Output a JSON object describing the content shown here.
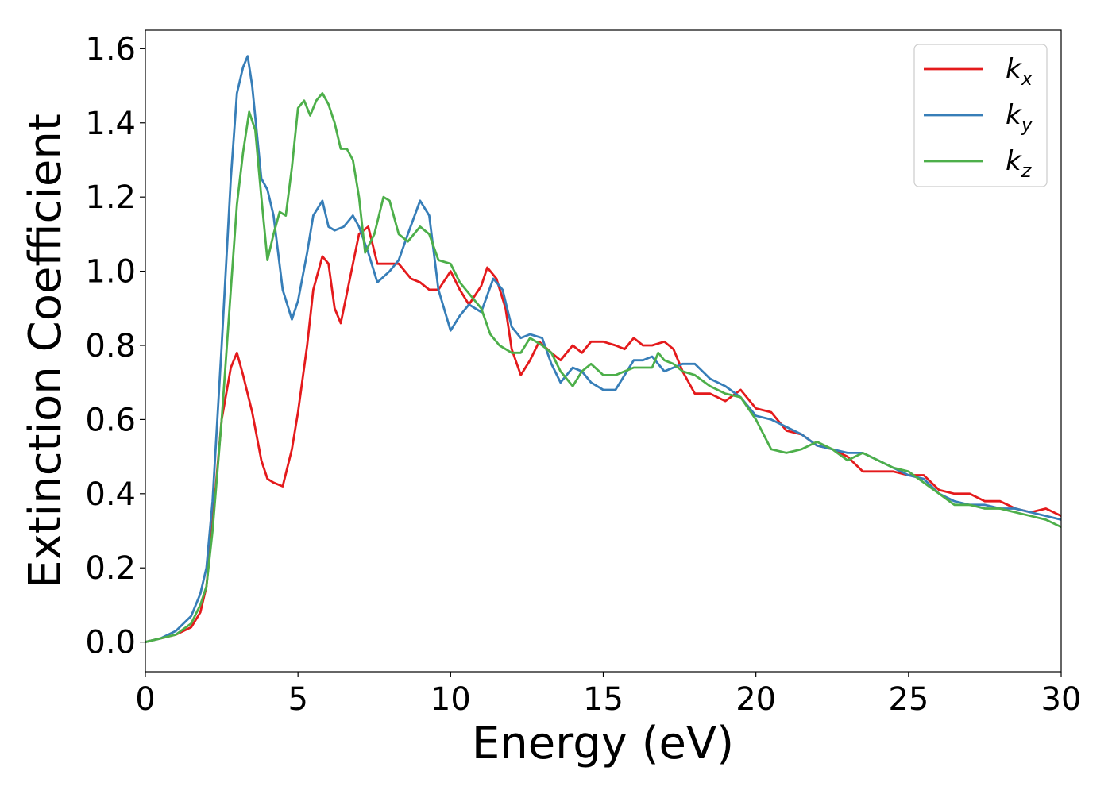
{
  "chart_data": {
    "type": "line",
    "xlabel": "Energy (eV)",
    "ylabel": "Extinction Coefficient",
    "xlim": [
      0,
      30
    ],
    "ylim": [
      -0.08,
      1.65
    ],
    "xticks": [
      0,
      5,
      10,
      15,
      20,
      25,
      30
    ],
    "yticks": [
      0.0,
      0.2,
      0.4,
      0.6,
      0.8,
      1.0,
      1.2,
      1.4,
      1.6
    ],
    "grid": false,
    "legend_position": "top-right",
    "series": [
      {
        "name": "k",
        "subscript": "x",
        "color": "#e41a1c",
        "x": [
          0,
          0.5,
          1.0,
          1.5,
          1.8,
          2.0,
          2.2,
          2.5,
          2.8,
          3.0,
          3.2,
          3.5,
          3.8,
          4.0,
          4.2,
          4.5,
          4.8,
          5.0,
          5.3,
          5.5,
          5.8,
          6.0,
          6.2,
          6.4,
          6.7,
          7.0,
          7.3,
          7.6,
          8.0,
          8.3,
          8.7,
          9.0,
          9.3,
          9.6,
          10.0,
          10.3,
          10.6,
          11.0,
          11.2,
          11.5,
          11.8,
          12.0,
          12.3,
          12.6,
          12.9,
          13.3,
          13.6,
          14.0,
          14.3,
          14.6,
          15.0,
          15.4,
          15.7,
          16.0,
          16.3,
          16.6,
          17.0,
          17.3,
          17.6,
          18.0,
          18.5,
          19.0,
          19.5,
          20.0,
          20.5,
          21.0,
          21.5,
          22.0,
          22.5,
          23.0,
          23.5,
          24.0,
          24.5,
          25.0,
          25.5,
          26.0,
          26.5,
          27.0,
          27.5,
          28.0,
          28.5,
          29.0,
          29.5,
          30.0
        ],
        "y": [
          0.0,
          0.01,
          0.02,
          0.04,
          0.08,
          0.15,
          0.32,
          0.6,
          0.74,
          0.78,
          0.72,
          0.62,
          0.49,
          0.44,
          0.43,
          0.42,
          0.52,
          0.62,
          0.8,
          0.95,
          1.04,
          1.02,
          0.9,
          0.86,
          0.98,
          1.1,
          1.12,
          1.02,
          1.02,
          1.02,
          0.98,
          0.97,
          0.95,
          0.95,
          1.0,
          0.95,
          0.91,
          0.96,
          1.01,
          0.98,
          0.9,
          0.79,
          0.72,
          0.76,
          0.81,
          0.78,
          0.76,
          0.8,
          0.78,
          0.81,
          0.81,
          0.8,
          0.79,
          0.82,
          0.8,
          0.8,
          0.81,
          0.79,
          0.73,
          0.67,
          0.67,
          0.65,
          0.68,
          0.63,
          0.62,
          0.57,
          0.56,
          0.53,
          0.52,
          0.5,
          0.46,
          0.46,
          0.46,
          0.45,
          0.45,
          0.41,
          0.4,
          0.4,
          0.38,
          0.38,
          0.36,
          0.35,
          0.36,
          0.34
        ]
      },
      {
        "name": "k",
        "subscript": "y",
        "color": "#377eb8",
        "x": [
          0,
          0.5,
          1.0,
          1.5,
          1.8,
          2.0,
          2.2,
          2.5,
          2.8,
          3.0,
          3.2,
          3.35,
          3.5,
          3.8,
          4.0,
          4.2,
          4.5,
          4.8,
          5.0,
          5.3,
          5.5,
          5.8,
          6.0,
          6.2,
          6.5,
          6.8,
          7.0,
          7.3,
          7.6,
          8.0,
          8.3,
          8.6,
          9.0,
          9.3,
          9.6,
          10.0,
          10.3,
          10.6,
          11.0,
          11.4,
          11.7,
          12.0,
          12.3,
          12.6,
          13.0,
          13.3,
          13.6,
          14.0,
          14.3,
          14.6,
          15.0,
          15.4,
          15.7,
          16.0,
          16.3,
          16.6,
          17.0,
          17.3,
          17.6,
          18.0,
          18.5,
          19.0,
          19.5,
          20.0,
          20.5,
          21.0,
          21.5,
          22.0,
          22.5,
          23.0,
          23.5,
          24.0,
          24.5,
          25.0,
          25.5,
          26.0,
          26.5,
          27.0,
          27.5,
          28.0,
          28.5,
          29.0,
          29.5,
          30.0
        ],
        "y": [
          0.0,
          0.01,
          0.03,
          0.07,
          0.13,
          0.2,
          0.38,
          0.8,
          1.25,
          1.48,
          1.55,
          1.58,
          1.5,
          1.25,
          1.22,
          1.15,
          0.95,
          0.87,
          0.92,
          1.05,
          1.15,
          1.19,
          1.12,
          1.11,
          1.12,
          1.15,
          1.12,
          1.05,
          0.97,
          1.0,
          1.03,
          1.1,
          1.19,
          1.15,
          0.95,
          0.84,
          0.88,
          0.91,
          0.89,
          0.98,
          0.95,
          0.85,
          0.82,
          0.83,
          0.82,
          0.75,
          0.7,
          0.74,
          0.73,
          0.7,
          0.68,
          0.68,
          0.72,
          0.76,
          0.76,
          0.77,
          0.73,
          0.74,
          0.75,
          0.75,
          0.71,
          0.69,
          0.66,
          0.61,
          0.6,
          0.58,
          0.56,
          0.53,
          0.52,
          0.51,
          0.51,
          0.49,
          0.47,
          0.45,
          0.44,
          0.4,
          0.38,
          0.37,
          0.37,
          0.36,
          0.36,
          0.35,
          0.34,
          0.33
        ]
      },
      {
        "name": "k",
        "subscript": "z",
        "color": "#4daf4a",
        "x": [
          0,
          0.5,
          1.0,
          1.5,
          1.8,
          2.0,
          2.2,
          2.5,
          2.8,
          3.0,
          3.2,
          3.4,
          3.6,
          3.8,
          4.0,
          4.2,
          4.4,
          4.6,
          4.8,
          5.0,
          5.2,
          5.4,
          5.6,
          5.8,
          6.0,
          6.2,
          6.4,
          6.6,
          6.8,
          7.0,
          7.2,
          7.5,
          7.8,
          8.0,
          8.3,
          8.6,
          9.0,
          9.3,
          9.6,
          10.0,
          10.3,
          10.6,
          11.0,
          11.3,
          11.6,
          12.0,
          12.3,
          12.6,
          13.0,
          13.3,
          13.6,
          14.0,
          14.3,
          14.6,
          15.0,
          15.4,
          15.7,
          16.0,
          16.3,
          16.6,
          16.8,
          17.0,
          17.3,
          17.6,
          18.0,
          18.5,
          19.0,
          19.5,
          20.0,
          20.5,
          21.0,
          21.5,
          22.0,
          22.5,
          23.0,
          23.5,
          24.0,
          24.5,
          25.0,
          25.5,
          26.0,
          26.5,
          27.0,
          27.5,
          28.0,
          28.5,
          29.0,
          29.5,
          30.0
        ],
        "y": [
          0.0,
          0.01,
          0.02,
          0.05,
          0.1,
          0.15,
          0.3,
          0.6,
          0.95,
          1.18,
          1.32,
          1.43,
          1.38,
          1.2,
          1.03,
          1.1,
          1.16,
          1.15,
          1.28,
          1.44,
          1.46,
          1.42,
          1.46,
          1.48,
          1.45,
          1.4,
          1.33,
          1.33,
          1.3,
          1.2,
          1.05,
          1.1,
          1.2,
          1.19,
          1.1,
          1.08,
          1.12,
          1.1,
          1.03,
          1.02,
          0.97,
          0.94,
          0.9,
          0.83,
          0.8,
          0.78,
          0.78,
          0.82,
          0.8,
          0.78,
          0.73,
          0.69,
          0.73,
          0.75,
          0.72,
          0.72,
          0.73,
          0.74,
          0.74,
          0.74,
          0.78,
          0.76,
          0.75,
          0.73,
          0.72,
          0.69,
          0.67,
          0.66,
          0.6,
          0.52,
          0.51,
          0.52,
          0.54,
          0.52,
          0.49,
          0.51,
          0.49,
          0.47,
          0.46,
          0.43,
          0.4,
          0.37,
          0.37,
          0.36,
          0.36,
          0.35,
          0.34,
          0.33,
          0.31
        ]
      }
    ]
  }
}
